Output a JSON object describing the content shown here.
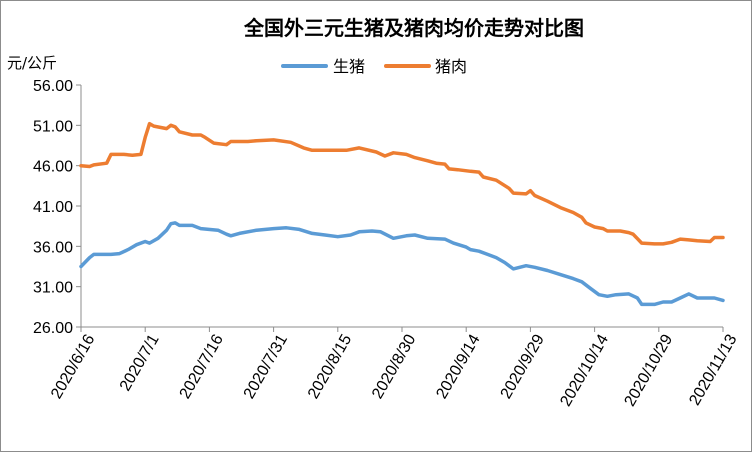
{
  "chart_data": {
    "type": "line",
    "title": "全国外三元生猪及猪肉均价走势对比图",
    "ylabel": "元/公斤",
    "ylim": [
      26,
      56
    ],
    "yticks": [
      "56.00",
      "51.00",
      "46.00",
      "41.00",
      "36.00",
      "31.00",
      "26.00"
    ],
    "xlim": [
      "2020/6/16",
      "2020/11/13"
    ],
    "xticks": [
      "2020/6/16",
      "2020/7/1",
      "2020/7/16",
      "2020/7/31",
      "2020/8/15",
      "2020/8/30",
      "2020/9/14",
      "2020/9/29",
      "2020/10/14",
      "2020/10/29",
      "2020/11/13"
    ],
    "grid": false,
    "legend_position": "top",
    "series": [
      {
        "name": "生猪",
        "color": "#5b9bd5",
        "points": [
          [
            "2020/6/16",
            33.5
          ],
          [
            "2020/6/18",
            34.6
          ],
          [
            "2020/6/19",
            35.0
          ],
          [
            "2020/6/23",
            35.0
          ],
          [
            "2020/6/25",
            35.1
          ],
          [
            "2020/6/27",
            35.6
          ],
          [
            "2020/6/29",
            36.2
          ],
          [
            "2020/7/1",
            36.6
          ],
          [
            "2020/7/2",
            36.4
          ],
          [
            "2020/7/4",
            37.0
          ],
          [
            "2020/7/6",
            38.0
          ],
          [
            "2020/7/7",
            38.8
          ],
          [
            "2020/7/8",
            38.9
          ],
          [
            "2020/7/9",
            38.6
          ],
          [
            "2020/7/12",
            38.6
          ],
          [
            "2020/7/14",
            38.2
          ],
          [
            "2020/7/18",
            38.0
          ],
          [
            "2020/7/20",
            37.5
          ],
          [
            "2020/7/21",
            37.3
          ],
          [
            "2020/7/23",
            37.6
          ],
          [
            "2020/7/27",
            38.0
          ],
          [
            "2020/7/31",
            38.2
          ],
          [
            "2020/8/3",
            38.3
          ],
          [
            "2020/8/6",
            38.1
          ],
          [
            "2020/8/9",
            37.6
          ],
          [
            "2020/8/12",
            37.4
          ],
          [
            "2020/8/15",
            37.2
          ],
          [
            "2020/8/18",
            37.4
          ],
          [
            "2020/8/20",
            37.8
          ],
          [
            "2020/8/23",
            37.9
          ],
          [
            "2020/8/25",
            37.8
          ],
          [
            "2020/8/28",
            37.0
          ],
          [
            "2020/8/31",
            37.3
          ],
          [
            "2020/9/2",
            37.4
          ],
          [
            "2020/9/5",
            37.0
          ],
          [
            "2020/9/9",
            36.9
          ],
          [
            "2020/9/11",
            36.4
          ],
          [
            "2020/9/14",
            35.9
          ],
          [
            "2020/9/15",
            35.6
          ],
          [
            "2020/9/17",
            35.4
          ],
          [
            "2020/9/19",
            35.0
          ],
          [
            "2020/9/21",
            34.6
          ],
          [
            "2020/9/23",
            34.0
          ],
          [
            "2020/9/25",
            33.2
          ],
          [
            "2020/9/28",
            33.6
          ],
          [
            "2020/9/30",
            33.4
          ],
          [
            "2020/10/3",
            33.0
          ],
          [
            "2020/10/6",
            32.5
          ],
          [
            "2020/10/9",
            32.0
          ],
          [
            "2020/10/11",
            31.6
          ],
          [
            "2020/10/13",
            30.8
          ],
          [
            "2020/10/15",
            30.0
          ],
          [
            "2020/10/17",
            29.8
          ],
          [
            "2020/10/19",
            30.0
          ],
          [
            "2020/10/22",
            30.1
          ],
          [
            "2020/10/24",
            29.6
          ],
          [
            "2020/10/25",
            28.8
          ],
          [
            "2020/10/28",
            28.8
          ],
          [
            "2020/10/30",
            29.1
          ],
          [
            "2020/11/1",
            29.1
          ],
          [
            "2020/11/3",
            29.6
          ],
          [
            "2020/11/5",
            30.1
          ],
          [
            "2020/11/7",
            29.6
          ],
          [
            "2020/11/11",
            29.6
          ],
          [
            "2020/11/13",
            29.3
          ]
        ]
      },
      {
        "name": "猪肉",
        "color": "#ed7d31",
        "points": [
          [
            "2020/6/16",
            46.0
          ],
          [
            "2020/6/18",
            45.9
          ],
          [
            "2020/6/19",
            46.1
          ],
          [
            "2020/6/22",
            46.3
          ],
          [
            "2020/6/23",
            47.4
          ],
          [
            "2020/6/26",
            47.4
          ],
          [
            "2020/6/28",
            47.3
          ],
          [
            "2020/6/30",
            47.4
          ],
          [
            "2020/7/1",
            49.5
          ],
          [
            "2020/7/2",
            51.2
          ],
          [
            "2020/7/3",
            50.9
          ],
          [
            "2020/7/6",
            50.6
          ],
          [
            "2020/7/7",
            51.0
          ],
          [
            "2020/7/8",
            50.8
          ],
          [
            "2020/7/9",
            50.2
          ],
          [
            "2020/7/12",
            49.8
          ],
          [
            "2020/7/14",
            49.8
          ],
          [
            "2020/7/15",
            49.5
          ],
          [
            "2020/7/17",
            48.8
          ],
          [
            "2020/7/20",
            48.6
          ],
          [
            "2020/7/21",
            49.0
          ],
          [
            "2020/7/25",
            49.0
          ],
          [
            "2020/7/27",
            49.1
          ],
          [
            "2020/7/31",
            49.2
          ],
          [
            "2020/8/4",
            48.9
          ],
          [
            "2020/8/7",
            48.2
          ],
          [
            "2020/8/9",
            47.9
          ],
          [
            "2020/8/13",
            47.9
          ],
          [
            "2020/8/17",
            47.9
          ],
          [
            "2020/8/20",
            48.2
          ],
          [
            "2020/8/24",
            47.7
          ],
          [
            "2020/8/26",
            47.2
          ],
          [
            "2020/8/28",
            47.6
          ],
          [
            "2020/8/31",
            47.4
          ],
          [
            "2020/9/2",
            47.0
          ],
          [
            "2020/9/5",
            46.6
          ],
          [
            "2020/9/7",
            46.3
          ],
          [
            "2020/9/9",
            46.2
          ],
          [
            "2020/9/10",
            45.6
          ],
          [
            "2020/9/12",
            45.5
          ],
          [
            "2020/9/15",
            45.3
          ],
          [
            "2020/9/17",
            45.2
          ],
          [
            "2020/9/18",
            44.6
          ],
          [
            "2020/9/21",
            44.2
          ],
          [
            "2020/9/24",
            43.2
          ],
          [
            "2020/9/25",
            42.6
          ],
          [
            "2020/9/28",
            42.5
          ],
          [
            "2020/9/29",
            42.9
          ],
          [
            "2020/9/30",
            42.3
          ],
          [
            "2020/10/3",
            41.6
          ],
          [
            "2020/10/6",
            40.8
          ],
          [
            "2020/10/9",
            40.2
          ],
          [
            "2020/10/11",
            39.6
          ],
          [
            "2020/10/12",
            38.9
          ],
          [
            "2020/10/14",
            38.4
          ],
          [
            "2020/10/16",
            38.2
          ],
          [
            "2020/10/17",
            37.9
          ],
          [
            "2020/10/20",
            37.9
          ],
          [
            "2020/10/22",
            37.7
          ],
          [
            "2020/10/23",
            37.5
          ],
          [
            "2020/10/25",
            36.4
          ],
          [
            "2020/10/28",
            36.3
          ],
          [
            "2020/10/30",
            36.3
          ],
          [
            "2020/11/1",
            36.5
          ],
          [
            "2020/11/3",
            36.9
          ],
          [
            "2020/11/5",
            36.8
          ],
          [
            "2020/11/7",
            36.7
          ],
          [
            "2020/11/10",
            36.6
          ],
          [
            "2020/11/11",
            37.1
          ],
          [
            "2020/11/13",
            37.1
          ]
        ]
      }
    ]
  }
}
